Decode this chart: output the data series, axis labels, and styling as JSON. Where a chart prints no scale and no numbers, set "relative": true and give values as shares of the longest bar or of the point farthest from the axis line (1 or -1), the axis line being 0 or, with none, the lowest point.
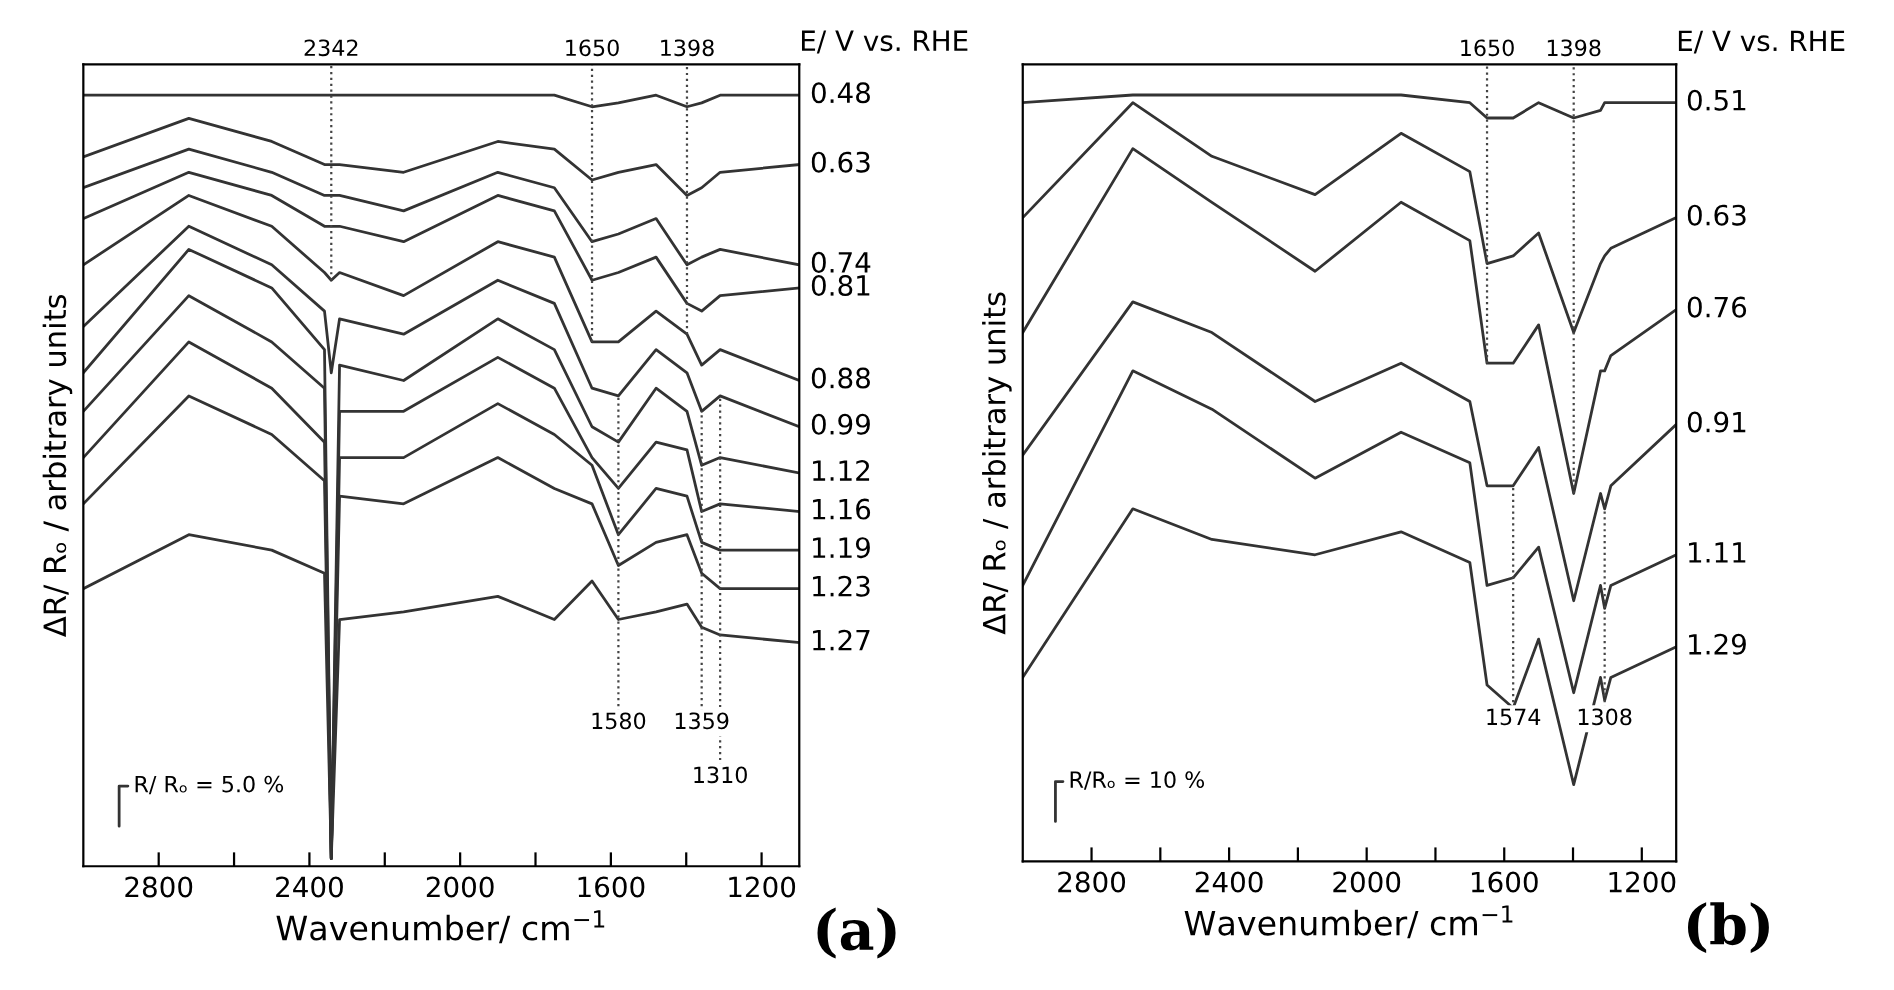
{
  "chart_data": [
    {
      "type": "line",
      "relative": true,
      "xlabel": "Wavenumber/ cm$^{−1}$",
      "ylabel": "ΔR/ Rₒ / arbitrary units",
      "xlim": [
        3000,
        1100
      ],
      "xticks": [
        2800,
        {
          "value": 2600,
          "label": null
        },
        2400,
        {
          "value": 2200,
          "label": null
        },
        2000,
        {
          "value": 1800,
          "label": null
        },
        1600,
        {
          "value": 1400,
          "label": null
        },
        1200
      ],
      "tick_labels": "x",
      "legend": false,
      "grid": false,
      "line_style": "solid",
      "x": [
        3000,
        2720,
        2500,
        2360,
        2342,
        2320,
        2150,
        1900,
        1750,
        1650,
        1580,
        1480,
        1398,
        1359,
        1310,
        1100
      ],
      "series": [
        {
          "name": "0.48",
          "color": "#333333",
          "values": [
            1.0,
            1.0,
            1.0,
            1.0,
            1.0,
            1.0,
            1.0,
            1.0,
            1.0,
            0.985,
            0.99,
            1.0,
            0.985,
            0.99,
            1.0,
            1.0
          ]
        },
        {
          "name": "0.63",
          "color": "#333333",
          "values": [
            0.92,
            0.97,
            0.94,
            0.91,
            0.91,
            0.91,
            0.9,
            0.94,
            0.93,
            0.89,
            0.9,
            0.91,
            0.87,
            0.88,
            0.9,
            0.91
          ]
        },
        {
          "name": "0.74",
          "color": "#333333",
          "values": [
            0.88,
            0.93,
            0.9,
            0.87,
            0.87,
            0.87,
            0.85,
            0.9,
            0.88,
            0.81,
            0.82,
            0.84,
            0.78,
            0.79,
            0.8,
            0.78
          ]
        },
        {
          "name": "0.81",
          "color": "#333333",
          "values": [
            0.84,
            0.9,
            0.87,
            0.83,
            0.83,
            0.83,
            0.81,
            0.87,
            0.85,
            0.76,
            0.77,
            0.79,
            0.73,
            0.72,
            0.74,
            0.75
          ]
        },
        {
          "name": "0.88",
          "color": "#333333",
          "values": [
            0.78,
            0.87,
            0.83,
            0.77,
            0.76,
            0.77,
            0.74,
            0.81,
            0.79,
            0.68,
            0.68,
            0.72,
            0.69,
            0.65,
            0.67,
            0.63
          ]
        },
        {
          "name": "0.99",
          "color": "#333333",
          "values": [
            0.7,
            0.83,
            0.78,
            0.72,
            0.64,
            0.71,
            0.69,
            0.76,
            0.73,
            0.62,
            0.61,
            0.67,
            0.64,
            0.59,
            0.61,
            0.57
          ]
        },
        {
          "name": "1.12",
          "color": "#333333",
          "values": [
            0.64,
            0.8,
            0.75,
            0.67,
            0.01,
            0.65,
            0.63,
            0.71,
            0.67,
            0.57,
            0.55,
            0.62,
            0.59,
            0.52,
            0.53,
            0.51
          ]
        },
        {
          "name": "1.16",
          "color": "#333333",
          "values": [
            0.59,
            0.74,
            0.68,
            0.62,
            0.01,
            0.59,
            0.59,
            0.66,
            0.62,
            0.53,
            0.49,
            0.55,
            0.54,
            0.46,
            0.47,
            0.46
          ]
        },
        {
          "name": "1.19",
          "color": "#333333",
          "values": [
            0.53,
            0.68,
            0.62,
            0.55,
            0.01,
            0.53,
            0.53,
            0.6,
            0.56,
            0.52,
            0.43,
            0.49,
            0.48,
            0.42,
            0.41,
            0.41
          ]
        },
        {
          "name": "1.23",
          "color": "#333333",
          "values": [
            0.47,
            0.61,
            0.56,
            0.5,
            0.01,
            0.48,
            0.47,
            0.53,
            0.49,
            0.47,
            0.39,
            0.42,
            0.43,
            0.38,
            0.36,
            0.36
          ]
        },
        {
          "name": "1.27",
          "color": "#333333",
          "values": [
            0.36,
            0.43,
            0.41,
            0.38,
            0.01,
            0.32,
            0.33,
            0.35,
            0.32,
            0.37,
            0.32,
            0.33,
            0.34,
            0.31,
            0.3,
            0.29
          ]
        }
      ],
      "ref_lines": [
        {
          "axis": "x",
          "value": 2342,
          "label": "2342",
          "line_style": "dotted",
          "color": "#444444"
        },
        {
          "axis": "x",
          "value": 1650,
          "label": "1650",
          "line_style": "dotted",
          "color": "#444444"
        },
        {
          "axis": "x",
          "value": 1398,
          "label": "1398",
          "line_style": "dotted",
          "color": "#444444"
        },
        {
          "axis": "x",
          "value": 1580,
          "label": "1580",
          "line_style": "dotted",
          "color": "#444444"
        },
        {
          "axis": "x",
          "value": 1359,
          "label": "1359",
          "line_style": "dotted",
          "color": "#444444"
        },
        {
          "axis": "x",
          "value": 1310,
          "label": "1310",
          "line_style": "dotted",
          "color": "#444444"
        }
      ],
      "annotations": [
        "E/ V vs. RHE",
        "R/ Rₒ = 5.0 %",
        "(a)"
      ]
    },
    {
      "type": "line",
      "relative": true,
      "xlabel": "Wavenumber/ cm$^{−1}$",
      "ylabel": "ΔR/ Rₒ / arbitrary units",
      "xlim": [
        3000,
        1100
      ],
      "xticks": [
        2800,
        {
          "value": 2600,
          "label": null
        },
        2400,
        {
          "value": 2200,
          "label": null
        },
        2000,
        {
          "value": 1800,
          "label": null
        },
        1600,
        {
          "value": 1400,
          "label": null
        },
        1200
      ],
      "tick_labels": "x",
      "legend": false,
      "grid": false,
      "line_style": "solid",
      "x": [
        3000,
        2680,
        2450,
        2150,
        1900,
        1700,
        1650,
        1574,
        1500,
        1398,
        1320,
        1308,
        1290,
        1100
      ],
      "series": [
        {
          "name": "0.51",
          "color": "#333333",
          "values": [
            0.99,
            1.0,
            1.0,
            1.0,
            1.0,
            0.99,
            0.97,
            0.97,
            0.99,
            0.97,
            0.98,
            0.99,
            0.99,
            0.99
          ]
        },
        {
          "name": "0.63",
          "color": "#333333",
          "values": [
            0.84,
            0.99,
            0.92,
            0.87,
            0.95,
            0.9,
            0.78,
            0.79,
            0.82,
            0.69,
            0.78,
            0.79,
            0.8,
            0.84
          ]
        },
        {
          "name": "0.76",
          "color": "#333333",
          "values": [
            0.69,
            0.93,
            0.86,
            0.77,
            0.86,
            0.81,
            0.65,
            0.65,
            0.7,
            0.48,
            0.64,
            0.64,
            0.66,
            0.72
          ]
        },
        {
          "name": "0.91",
          "color": "#333333",
          "values": [
            0.53,
            0.73,
            0.69,
            0.6,
            0.65,
            0.6,
            0.49,
            0.49,
            0.54,
            0.34,
            0.48,
            0.46,
            0.49,
            0.57
          ]
        },
        {
          "name": "1.11",
          "color": "#333333",
          "values": [
            0.36,
            0.64,
            0.59,
            0.5,
            0.56,
            0.52,
            0.36,
            0.37,
            0.41,
            0.22,
            0.36,
            0.33,
            0.36,
            0.4
          ]
        },
        {
          "name": "1.29",
          "color": "#333333",
          "values": [
            0.24,
            0.46,
            0.42,
            0.4,
            0.43,
            0.39,
            0.23,
            0.2,
            0.29,
            0.1,
            0.24,
            0.21,
            0.24,
            0.28
          ]
        }
      ],
      "ref_lines": [
        {
          "axis": "x",
          "value": 1650,
          "label": "1650",
          "line_style": "dotted",
          "color": "#444444"
        },
        {
          "axis": "x",
          "value": 1398,
          "label": "1398",
          "line_style": "dotted",
          "color": "#444444"
        },
        {
          "axis": "x",
          "value": 1574,
          "label": "1574",
          "line_style": "dotted",
          "color": "#444444"
        },
        {
          "axis": "x",
          "value": 1308,
          "label": "1308",
          "line_style": "dotted",
          "color": "#444444"
        }
      ],
      "annotations": [
        "E/ V vs. RHE",
        "R/Rₒ = 10 %",
        "(b)"
      ]
    }
  ]
}
